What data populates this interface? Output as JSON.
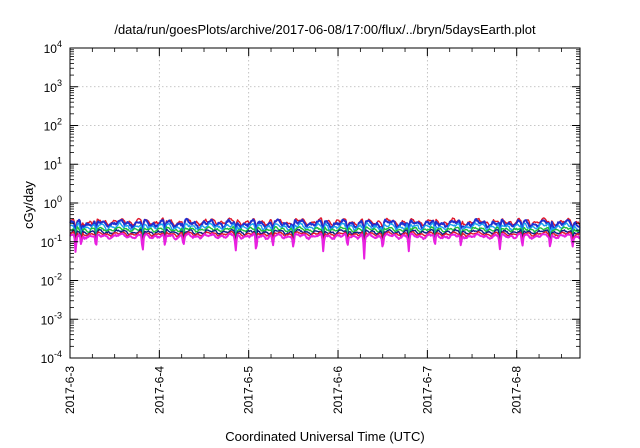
{
  "chart_data": {
    "type": "line",
    "title": "/data/run/goesPlots/archive/2017-06-08/17:00/flux/../bryn/5daysEarth.plot",
    "xlabel": "Coordinated Universal Time (UTC)",
    "ylabel": "cGy/day",
    "y_scale": "log",
    "ylim": [
      0.0001,
      10000
    ],
    "y_ticks": [
      {
        "value": 0.0001,
        "label": "10",
        "exp": "-4"
      },
      {
        "value": 0.001,
        "label": "10",
        "exp": "-3"
      },
      {
        "value": 0.01,
        "label": "10",
        "exp": "-2"
      },
      {
        "value": 0.1,
        "label": "10",
        "exp": "-1"
      },
      {
        "value": 1,
        "label": "10",
        "exp": "0"
      },
      {
        "value": 10,
        "label": "10",
        "exp": "1"
      },
      {
        "value": 100,
        "label": "10",
        "exp": "2"
      },
      {
        "value": 1000,
        "label": "10",
        "exp": "3"
      },
      {
        "value": 10000,
        "label": "10",
        "exp": "4"
      }
    ],
    "x_range": [
      "2017-06-03T00:00",
      "2017-06-08T17:00"
    ],
    "x_ticks": [
      "2017-6-3",
      "2017-6-4",
      "2017-6-5",
      "2017-6-6",
      "2017-6-7",
      "2017-6-8"
    ],
    "grid": true,
    "series": [
      {
        "color": "#e0162b",
        "base": 0.33,
        "amp": 0.07,
        "dip": 0.35
      },
      {
        "color": "#1f2fd0",
        "base": 0.3,
        "amp": 0.07,
        "dip": 0.4
      },
      {
        "color": "#1aa0f0",
        "base": 0.25,
        "amp": 0.05,
        "dip": 0.45
      },
      {
        "color": "#1fbf3a",
        "base": 0.21,
        "amp": 0.03,
        "dip": 0.45
      },
      {
        "color": "#0b1f8a",
        "base": 0.18,
        "amp": 0.025,
        "dip": 0.45
      },
      {
        "color": "#e0162b",
        "base": 0.16,
        "amp": 0.02,
        "dip": 0.45
      },
      {
        "color": "#e820e0",
        "base": 0.14,
        "amp": 0.02,
        "dip": 0.55
      }
    ],
    "dips": [
      {
        "t": "2017-06-03T01:30",
        "depth": 0.55
      },
      {
        "t": "2017-06-03T03:00",
        "depth": 0.4
      },
      {
        "t": "2017-06-03T07:00",
        "depth": 0.5
      },
      {
        "t": "2017-06-03T19:30",
        "depth": 0.55
      },
      {
        "t": "2017-06-04T01:30",
        "depth": 0.45
      },
      {
        "t": "2017-06-04T06:30",
        "depth": 0.4
      },
      {
        "t": "2017-06-04T20:30",
        "depth": 0.5
      },
      {
        "t": "2017-06-05T02:00",
        "depth": 0.6
      },
      {
        "t": "2017-06-05T06:30",
        "depth": 0.4
      },
      {
        "t": "2017-06-05T12:00",
        "depth": 0.45
      },
      {
        "t": "2017-06-05T20:00",
        "depth": 0.5
      },
      {
        "t": "2017-06-06T02:30",
        "depth": 0.45
      },
      {
        "t": "2017-06-06T07:00",
        "depth": 0.65
      },
      {
        "t": "2017-06-06T12:00",
        "depth": 0.45
      },
      {
        "t": "2017-06-06T19:00",
        "depth": 0.5
      },
      {
        "t": "2017-06-07T02:00",
        "depth": 0.45
      },
      {
        "t": "2017-06-07T09:00",
        "depth": 0.4
      },
      {
        "t": "2017-06-07T19:30",
        "depth": 0.5
      },
      {
        "t": "2017-06-08T01:30",
        "depth": 0.45
      },
      {
        "t": "2017-06-08T09:00",
        "depth": 0.45
      },
      {
        "t": "2017-06-08T15:00",
        "depth": 0.4
      }
    ]
  }
}
